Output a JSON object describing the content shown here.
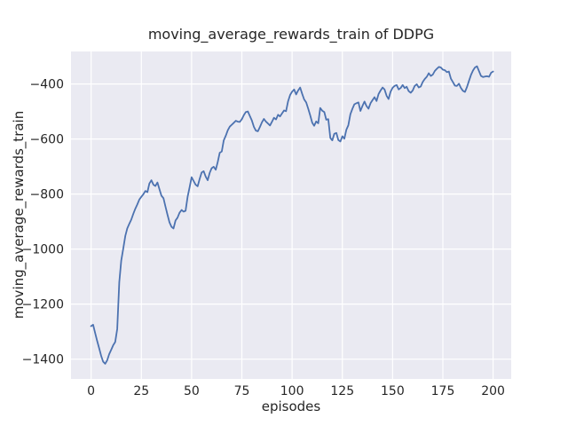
{
  "chart_data": {
    "type": "line",
    "title": "moving_average_rewards_train of DDPG",
    "xlabel": "episodes",
    "ylabel": "moving_average_rewards_train",
    "grid": true,
    "legend": false,
    "plot_bg": "#eaeaf2",
    "grid_color": "#ffffff",
    "text_color": "#262626",
    "xlim": [
      -10,
      209
    ],
    "ylim": [
      -1472,
      -282
    ],
    "x_ticks": [
      0,
      25,
      50,
      75,
      100,
      125,
      150,
      175,
      200
    ],
    "y_ticks": [
      -400,
      -600,
      -800,
      -1000,
      -1200,
      -1400
    ],
    "series": [
      {
        "name": "moving_average_rewards_train",
        "color": "#4c72b0",
        "x": [
          0,
          1,
          2,
          3,
          4,
          5,
          6,
          7,
          8,
          9,
          10,
          11,
          12,
          13,
          14,
          15,
          16,
          17,
          18,
          19,
          20,
          21,
          22,
          23,
          24,
          25,
          26,
          27,
          28,
          29,
          30,
          31,
          32,
          33,
          34,
          35,
          36,
          37,
          38,
          39,
          40,
          41,
          42,
          43,
          44,
          45,
          46,
          47,
          48,
          49,
          50,
          51,
          52,
          53,
          54,
          55,
          56,
          57,
          58,
          59,
          60,
          61,
          62,
          63,
          64,
          65,
          66,
          67,
          68,
          69,
          70,
          71,
          72,
          73,
          74,
          75,
          76,
          77,
          78,
          79,
          80,
          81,
          82,
          83,
          84,
          85,
          86,
          87,
          88,
          89,
          90,
          91,
          92,
          93,
          94,
          95,
          96,
          97,
          98,
          99,
          100,
          101,
          102,
          103,
          104,
          105,
          106,
          107,
          108,
          109,
          110,
          111,
          112,
          113,
          114,
          115,
          116,
          117,
          118,
          119,
          120,
          121,
          122,
          123,
          124,
          125,
          126,
          127,
          128,
          129,
          130,
          131,
          132,
          133,
          134,
          135,
          136,
          137,
          138,
          139,
          140,
          141,
          142,
          143,
          144,
          145,
          146,
          147,
          148,
          149,
          150,
          151,
          152,
          153,
          154,
          155,
          156,
          157,
          158,
          159,
          160,
          161,
          162,
          163,
          164,
          165,
          166,
          167,
          168,
          169,
          170,
          171,
          172,
          173,
          174,
          175,
          176,
          177,
          178,
          179,
          180,
          181,
          182,
          183,
          184,
          185,
          186,
          187,
          188,
          189,
          190,
          191,
          192,
          193,
          194,
          195,
          196,
          197,
          198,
          199,
          200
        ],
        "y": [
          -1280,
          -1275,
          -1305,
          -1333,
          -1360,
          -1388,
          -1409,
          -1417,
          -1404,
          -1382,
          -1366,
          -1349,
          -1338,
          -1290,
          -1120,
          -1042,
          -998,
          -952,
          -925,
          -908,
          -893,
          -872,
          -853,
          -838,
          -820,
          -810,
          -801,
          -789,
          -793,
          -762,
          -750,
          -766,
          -771,
          -758,
          -783,
          -806,
          -815,
          -845,
          -875,
          -903,
          -919,
          -925,
          -896,
          -886,
          -868,
          -858,
          -864,
          -861,
          -810,
          -776,
          -739,
          -753,
          -766,
          -772,
          -746,
          -722,
          -717,
          -736,
          -750,
          -723,
          -706,
          -701,
          -712,
          -684,
          -650,
          -645,
          -605,
          -588,
          -568,
          -555,
          -548,
          -541,
          -534,
          -537,
          -538,
          -528,
          -513,
          -502,
          -500,
          -517,
          -533,
          -556,
          -570,
          -572,
          -556,
          -539,
          -527,
          -537,
          -544,
          -551,
          -537,
          -523,
          -529,
          -512,
          -518,
          -507,
          -496,
          -499,
          -463,
          -440,
          -428,
          -420,
          -438,
          -424,
          -413,
          -436,
          -456,
          -467,
          -490,
          -514,
          -541,
          -552,
          -536,
          -543,
          -487,
          -497,
          -502,
          -530,
          -528,
          -596,
          -605,
          -581,
          -578,
          -604,
          -609,
          -590,
          -599,
          -566,
          -550,
          -510,
          -490,
          -474,
          -470,
          -467,
          -498,
          -480,
          -464,
          -480,
          -490,
          -470,
          -459,
          -448,
          -462,
          -437,
          -424,
          -413,
          -420,
          -443,
          -455,
          -428,
          -414,
          -407,
          -404,
          -420,
          -415,
          -404,
          -415,
          -410,
          -426,
          -432,
          -424,
          -407,
          -401,
          -413,
          -409,
          -393,
          -382,
          -374,
          -361,
          -371,
          -366,
          -353,
          -345,
          -338,
          -340,
          -348,
          -350,
          -357,
          -355,
          -381,
          -393,
          -406,
          -407,
          -399,
          -415,
          -425,
          -429,
          -411,
          -389,
          -367,
          -351,
          -340,
          -336,
          -354,
          -371,
          -375,
          -373,
          -372,
          -374,
          -359,
          -355
        ]
      }
    ]
  }
}
